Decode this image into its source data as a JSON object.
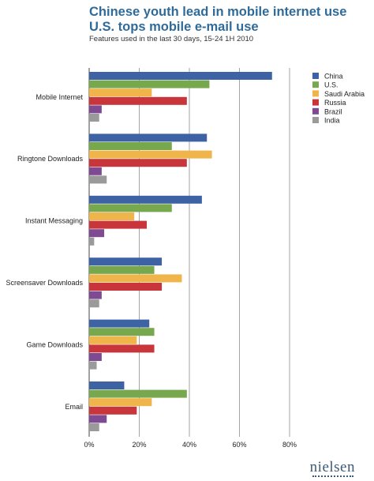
{
  "header": {
    "title_line1": "Chinese youth lead in mobile internet use",
    "title_line2": "U.S. tops mobile e-mail use",
    "subtitle": "Features used in the last 30 days, 15-24 1H 2010"
  },
  "brand": {
    "logo_text": "nielsen"
  },
  "chart_data": {
    "type": "bar",
    "orientation": "horizontal",
    "title": "Chinese youth lead in mobile internet use U.S. tops mobile e-mail use",
    "subtitle": "Features used in the last 30 days, 15-24 1H 2010",
    "categories": [
      "Mobile Internet",
      "Ringtone Downloads",
      "Instant Messaging",
      "Screensaver Downloads",
      "Game Downloads",
      "Email"
    ],
    "xlim": [
      0,
      80
    ],
    "xticks": [
      "0%",
      "20%",
      "40%",
      "60%",
      "80%"
    ],
    "xtick_values": [
      0,
      20,
      40,
      60,
      80
    ],
    "grid": true,
    "legend_position": "top-right",
    "series": [
      {
        "name": "China",
        "color": "#3e63a4",
        "values": [
          73,
          47,
          45,
          29,
          24,
          14
        ]
      },
      {
        "name": "U.S.",
        "color": "#77a84e",
        "values": [
          48,
          33,
          33,
          26,
          26,
          39
        ]
      },
      {
        "name": "Saudi Arabia",
        "color": "#efb54a",
        "values": [
          25,
          49,
          18,
          37,
          19,
          25
        ]
      },
      {
        "name": "Russia",
        "color": "#c8363b",
        "values": [
          39,
          39,
          23,
          29,
          26,
          19
        ]
      },
      {
        "name": "Brazil",
        "color": "#7e4b93",
        "values": [
          5,
          5,
          6,
          5,
          5,
          7
        ]
      },
      {
        "name": "India",
        "color": "#9a9a9a",
        "values": [
          4,
          7,
          2,
          4,
          3,
          4
        ]
      }
    ]
  }
}
